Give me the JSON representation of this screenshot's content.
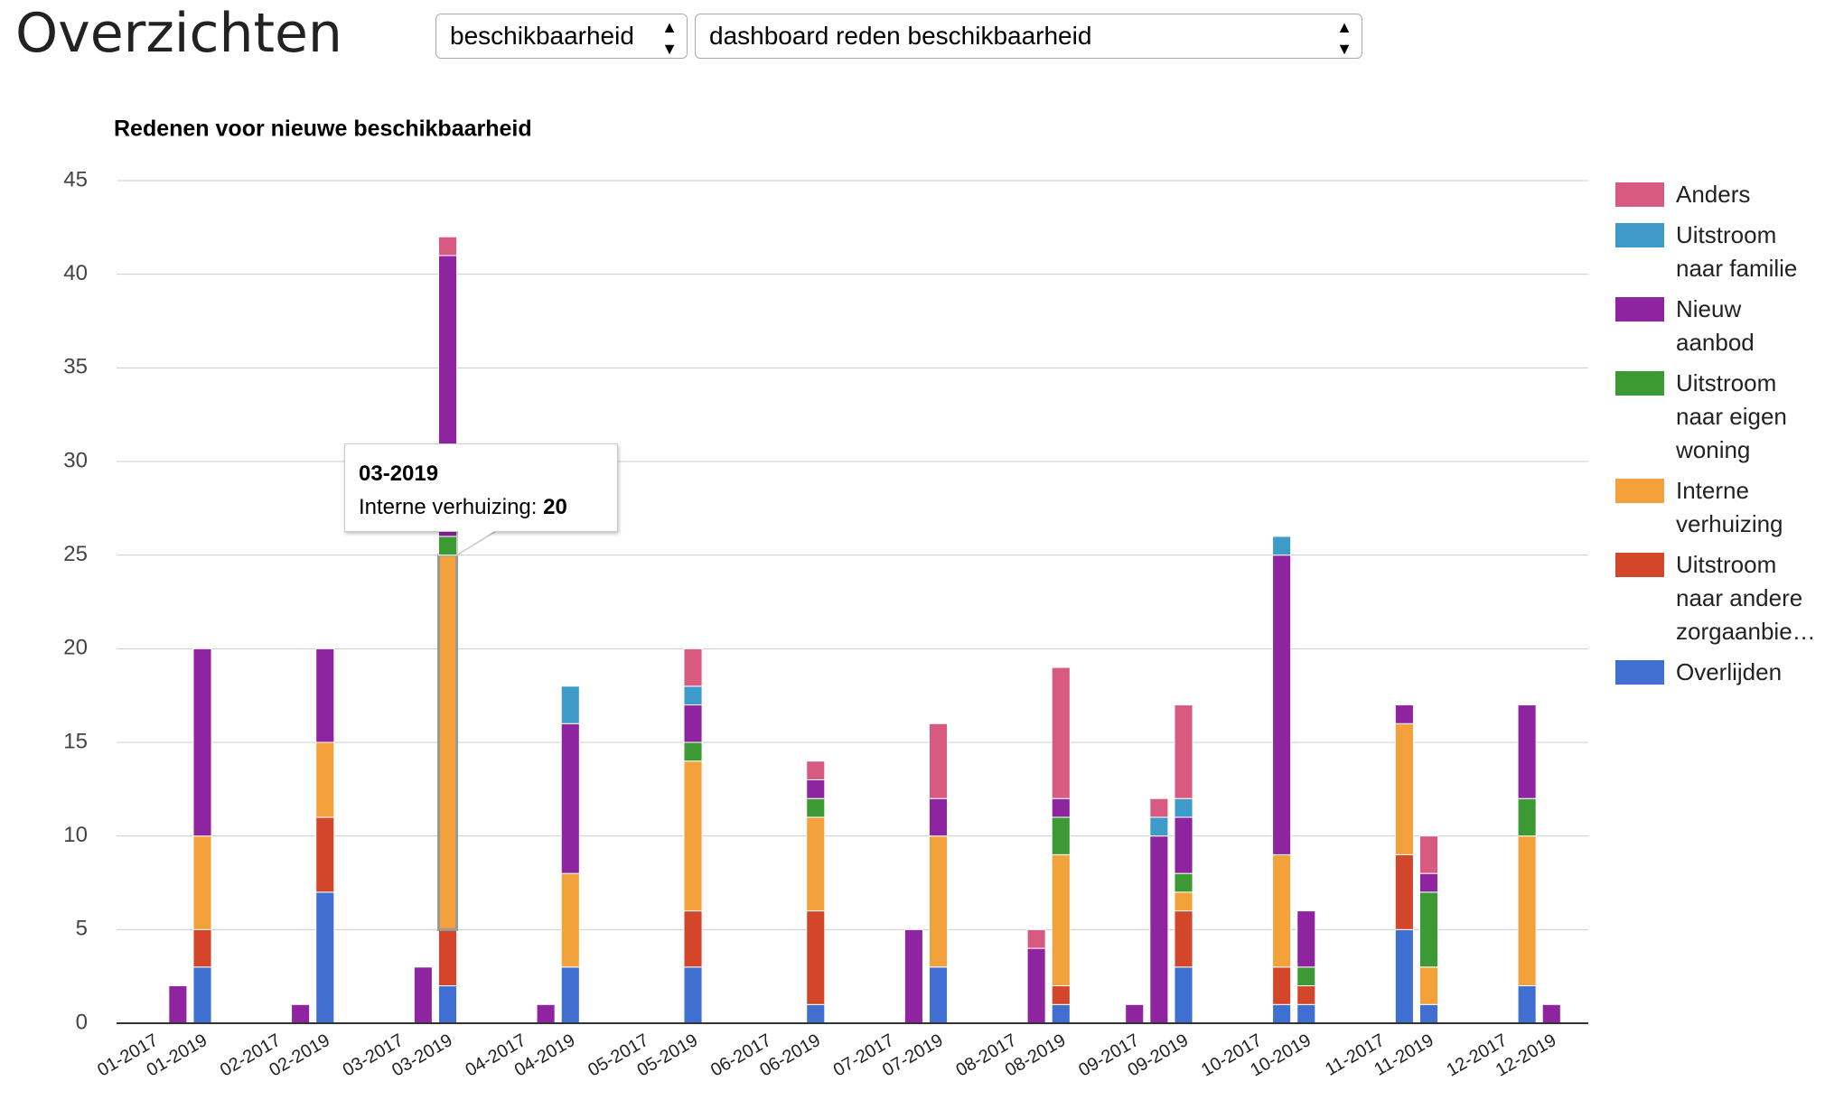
{
  "header": {
    "title": "Overzichten",
    "selects": [
      "beschikbaarheid",
      "dashboard reden beschikbaarheid"
    ]
  },
  "chart_data": {
    "type": "stacked_bar",
    "title": "Redenen voor nieuwe beschikbaarheid",
    "categories": [
      null,
      "01-2017",
      null,
      "01-2019",
      null,
      null,
      "02-2017",
      null,
      "02-2019",
      null,
      null,
      "03-2017",
      null,
      "03-2019",
      null,
      null,
      "04-2017",
      null,
      "04-2019",
      null,
      null,
      "05-2017",
      null,
      "05-2019",
      null,
      null,
      "06-2017",
      null,
      "06-2019",
      null,
      null,
      "07-2017",
      null,
      "07-2019",
      null,
      null,
      "08-2017",
      null,
      "08-2019",
      null,
      null,
      "09-2017",
      null,
      "09-2019",
      null,
      null,
      "10-2017",
      null,
      "10-2019",
      null,
      null,
      "11-2017",
      null,
      "11-2019",
      null,
      null,
      "12-2017",
      null,
      "12-2019",
      null
    ],
    "series": [
      {
        "name": "Anders",
        "color": "#d95a80",
        "values": [
          0,
          0,
          0,
          0,
          0,
          0,
          0,
          0,
          0,
          0,
          0,
          0,
          0,
          1,
          0,
          0,
          0,
          0,
          0,
          0,
          0,
          0,
          0,
          2,
          0,
          0,
          0,
          0,
          1,
          0,
          0,
          0,
          0,
          4,
          0,
          0,
          0,
          1,
          7,
          0,
          0,
          0,
          1,
          5,
          0,
          0,
          0,
          0,
          0,
          0,
          0,
          0,
          0,
          2,
          0,
          0,
          0,
          0,
          0,
          0
        ]
      },
      {
        "name": "Uitstroom naar familie",
        "color": "#3e9bc9",
        "values": [
          0,
          0,
          0,
          0,
          0,
          0,
          0,
          0,
          0,
          0,
          0,
          0,
          0,
          0,
          0,
          0,
          0,
          0,
          2,
          0,
          0,
          0,
          0,
          1,
          0,
          0,
          0,
          0,
          0,
          0,
          0,
          0,
          0,
          0,
          0,
          0,
          0,
          0,
          0,
          0,
          0,
          0,
          1,
          1,
          0,
          0,
          0,
          1,
          0,
          0,
          0,
          0,
          0,
          0,
          0,
          0,
          0,
          0,
          0,
          0
        ]
      },
      {
        "name": "Nieuw aanbod",
        "color": "#8e24a0",
        "values": [
          0,
          0,
          2,
          10,
          0,
          0,
          0,
          1,
          5,
          0,
          0,
          0,
          3,
          15,
          0,
          0,
          0,
          1,
          8,
          0,
          0,
          0,
          0,
          2,
          0,
          0,
          0,
          0,
          1,
          0,
          0,
          0,
          5,
          2,
          0,
          0,
          0,
          4,
          1,
          0,
          0,
          1,
          10,
          3,
          0,
          0,
          0,
          16,
          3,
          0,
          0,
          0,
          1,
          1,
          0,
          0,
          0,
          5,
          1,
          0
        ]
      },
      {
        "name": "Uitstroom naar eigen woning",
        "color": "#3c9a35",
        "values": [
          0,
          0,
          0,
          0,
          0,
          0,
          0,
          0,
          0,
          0,
          0,
          0,
          0,
          1,
          0,
          0,
          0,
          0,
          0,
          0,
          0,
          0,
          0,
          1,
          0,
          0,
          0,
          0,
          1,
          0,
          0,
          0,
          0,
          0,
          0,
          0,
          0,
          0,
          2,
          0,
          0,
          0,
          0,
          1,
          0,
          0,
          0,
          0,
          1,
          0,
          0,
          0,
          0,
          4,
          0,
          0,
          0,
          2,
          0,
          0
        ]
      },
      {
        "name": "Interne verhuizing",
        "color": "#f3a13b",
        "values": [
          0,
          0,
          0,
          5,
          0,
          0,
          0,
          0,
          4,
          0,
          0,
          0,
          0,
          20,
          0,
          0,
          0,
          0,
          5,
          0,
          0,
          0,
          0,
          8,
          0,
          0,
          0,
          0,
          5,
          0,
          0,
          0,
          0,
          7,
          0,
          0,
          0,
          0,
          7,
          0,
          0,
          0,
          0,
          1,
          0,
          0,
          0,
          6,
          0,
          0,
          0,
          0,
          7,
          2,
          0,
          0,
          0,
          8,
          0,
          0
        ]
      },
      {
        "name": "Uitstroom naar andere zorgaanbie…",
        "color": "#d3462a",
        "values": [
          0,
          0,
          0,
          2,
          0,
          0,
          0,
          0,
          4,
          0,
          0,
          0,
          0,
          3,
          0,
          0,
          0,
          0,
          0,
          0,
          0,
          0,
          0,
          3,
          0,
          0,
          0,
          0,
          5,
          0,
          0,
          0,
          0,
          0,
          0,
          0,
          0,
          0,
          1,
          0,
          0,
          0,
          0,
          3,
          0,
          0,
          0,
          2,
          1,
          0,
          0,
          0,
          4,
          0,
          0,
          0,
          0,
          0,
          0,
          0
        ]
      },
      {
        "name": "Overlijden",
        "color": "#3f6fd0",
        "values": [
          0,
          0,
          0,
          3,
          0,
          0,
          0,
          0,
          7,
          0,
          0,
          0,
          0,
          2,
          0,
          0,
          0,
          0,
          3,
          0,
          0,
          0,
          0,
          3,
          0,
          0,
          0,
          0,
          1,
          0,
          0,
          0,
          0,
          3,
          0,
          0,
          0,
          0,
          1,
          0,
          0,
          0,
          0,
          3,
          0,
          0,
          0,
          1,
          1,
          0,
          0,
          0,
          5,
          1,
          0,
          0,
          0,
          2,
          0,
          0
        ]
      }
    ],
    "ylim": [
      0,
      45
    ],
    "yticks": [
      0,
      5,
      10,
      15,
      20,
      25,
      30,
      35,
      40,
      45
    ],
    "grid": true,
    "legend": "right",
    "tooltip": {
      "title": "03-2019",
      "label": "Interne verhuizing:",
      "value": 20
    }
  }
}
